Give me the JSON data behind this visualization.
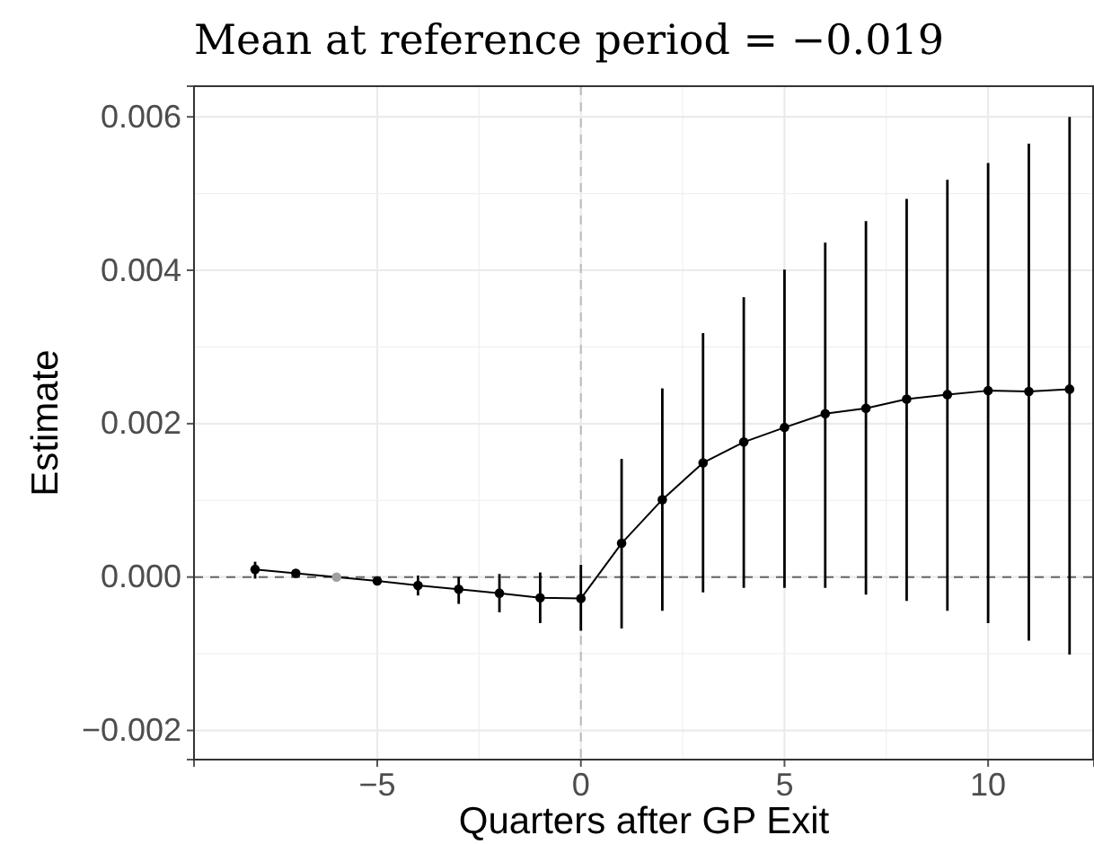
{
  "chart_data": {
    "type": "line",
    "title": "Mean at reference period = −0.019",
    "xlabel": "Quarters after GP Exit",
    "ylabel": "Estimate",
    "x": [
      -8,
      -7,
      -6,
      -5,
      -4,
      -3,
      -2,
      -1,
      0,
      1,
      2,
      3,
      4,
      5,
      6,
      7,
      8,
      9,
      10,
      11,
      12
    ],
    "series": [
      {
        "color": "#000000",
        "colors": [
          "#000000",
          "#000000",
          "#a0a0a0",
          "#000000",
          "#000000",
          "#000000",
          "#000000",
          "#000000",
          "#000000",
          "#000000",
          "#000000",
          "#000000",
          "#000000",
          "#000000",
          "#000000",
          "#000000",
          "#000000",
          "#000000",
          "#000000",
          "#000000",
          "#000000"
        ],
        "values": [
          0.0001,
          5e-05,
          0,
          -5e-05,
          -0.00011,
          -0.00016,
          -0.00021,
          -0.00027,
          -0.00028,
          0.00044,
          0.00101,
          0.00149,
          0.00176,
          0.00195,
          0.00213,
          0.0022,
          0.00232,
          0.00238,
          0.00243,
          0.00242,
          0.00245
        ],
        "errors": [
          [
            -2e-05,
            0.0002
          ],
          [
            1e-05,
            9e-05
          ],
          null,
          [
            -0.0001,
            0
          ],
          [
            -0.00024,
            2e-05
          ],
          [
            -0.00035,
            0
          ],
          [
            -0.00046,
            4e-05
          ],
          [
            -0.0006,
            6e-05
          ],
          [
            -0.0007,
            0.00016
          ],
          [
            -0.00067,
            0.00154
          ],
          [
            -0.00044,
            0.00246
          ],
          [
            -0.0002,
            0.00318
          ],
          [
            -0.00014,
            0.00365
          ],
          [
            -0.00014,
            0.00401
          ],
          [
            -0.00014,
            0.00436
          ],
          [
            -0.00023,
            0.00464
          ],
          [
            -0.00031,
            0.00493
          ],
          [
            -0.00044,
            0.00518
          ],
          [
            -0.0006,
            0.0054
          ],
          [
            -0.00083,
            0.00565
          ],
          [
            -0.00101,
            0.006
          ]
        ]
      }
    ],
    "xlim": [
      -9.5,
      12.6
    ],
    "xticks": [
      {
        "value": -5,
        "label": "−5"
      },
      0,
      5,
      10
    ],
    "ylim": [
      -0.00238,
      0.0064
    ],
    "yticks": [
      {
        "value": -0.002,
        "label": "−0.002"
      },
      {
        "value": 0,
        "label": "0.000"
      },
      {
        "value": 0.002,
        "label": "0.002"
      },
      {
        "value": 0.004,
        "label": "0.004"
      },
      {
        "value": 0.006,
        "label": "0.006"
      }
    ],
    "grid": true,
    "marker": "circle",
    "line_style": "solid",
    "ref_lines": [
      {
        "axis": "y",
        "value": 0,
        "color": "#666666",
        "line_style": "dashed"
      },
      {
        "axis": "x",
        "value": 0,
        "color": "#bbbbbb",
        "line_style": "dashed"
      }
    ]
  }
}
